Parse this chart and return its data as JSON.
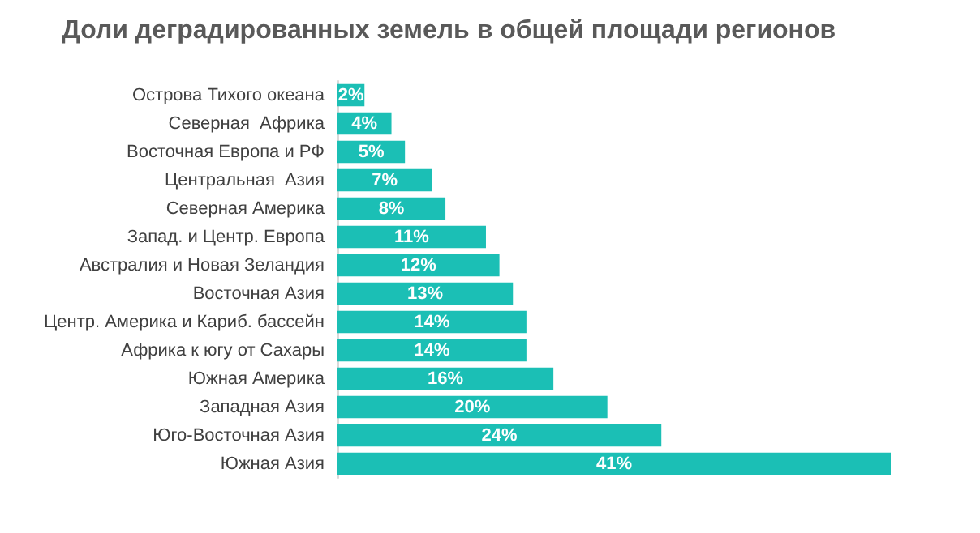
{
  "chart_data": {
    "type": "bar",
    "orientation": "horizontal",
    "title": "Доли деградированных земель в общей площади регионов",
    "categories": [
      "Острова Тихого океана",
      "Северная  Африка",
      "Восточная Европа и РФ",
      "Центральная  Азия",
      "Северная Америка",
      "Запад. и Центр. Европа",
      "Австралия и Новая Зеландия",
      "Восточная Азия",
      "Центр. Америка и Кариб. бассейн",
      "Африка к югу от Сахары",
      "Южная Америка",
      "Западная Азия",
      "Юго-Восточная Азия",
      "Южная Азия"
    ],
    "values": [
      2,
      4,
      5,
      7,
      8,
      11,
      12,
      13,
      14,
      14,
      16,
      20,
      24,
      41
    ],
    "value_labels": [
      "2%",
      "4%",
      "5%",
      "7%",
      "8%",
      "11%",
      "12%",
      "13%",
      "14%",
      "14%",
      "16%",
      "20%",
      "24%",
      "41%"
    ],
    "color": "#1bbfb5",
    "grid": false
  }
}
